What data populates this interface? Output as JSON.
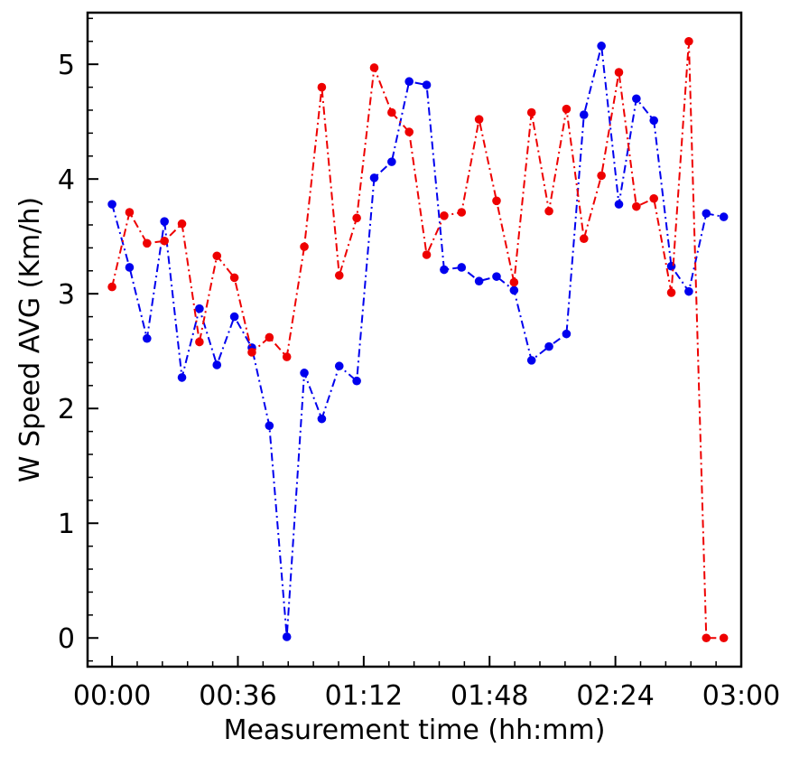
{
  "chart_data": {
    "type": "line",
    "title": "",
    "xlabel": "Measurement time (hh:mm)",
    "ylabel": "W Speed AVG (Km/h)",
    "x_unit": "hh:mm",
    "xlim": [
      "-00:07",
      "03:00"
    ],
    "ylim": [
      -0.25,
      5.45
    ],
    "x_ticks": [
      "00:00",
      "00:36",
      "01:12",
      "01:48",
      "02:24",
      "03:00"
    ],
    "y_ticks": [
      "0",
      "1",
      "2",
      "3",
      "4",
      "5"
    ],
    "grid": false,
    "legend": "none",
    "x": [
      "00:00",
      "00:05",
      "00:10",
      "00:15",
      "00:20",
      "00:25",
      "00:30",
      "00:35",
      "00:40",
      "00:45",
      "00:50",
      "00:55",
      "01:00",
      "01:05",
      "01:10",
      "01:15",
      "01:20",
      "01:25",
      "01:30",
      "01:35",
      "01:40",
      "01:45",
      "01:50",
      "01:55",
      "02:00",
      "02:05",
      "02:10",
      "02:15",
      "02:20",
      "02:25",
      "02:30",
      "02:35",
      "02:40",
      "02:45",
      "02:50",
      "02:55"
    ],
    "series": [
      {
        "color": "#0000ee",
        "line_style": "dash-dot",
        "marker": "circle",
        "values": [
          3.78,
          3.23,
          2.61,
          3.63,
          2.27,
          2.87,
          2.38,
          2.8,
          2.53,
          1.85,
          0.01,
          2.31,
          1.91,
          2.37,
          2.24,
          4.01,
          4.15,
          4.85,
          4.82,
          3.21,
          3.23,
          3.11,
          3.15,
          3.03,
          2.42,
          2.54,
          2.65,
          4.56,
          5.16,
          3.78,
          4.7,
          4.51,
          3.24,
          3.02,
          3.7,
          3.67
        ]
      },
      {
        "color": "#ee0000",
        "line_style": "dash-dot",
        "marker": "circle",
        "values": [
          3.06,
          3.71,
          3.44,
          3.46,
          3.61,
          2.58,
          3.33,
          3.14,
          2.49,
          2.62,
          2.45,
          3.41,
          4.8,
          3.16,
          3.66,
          4.97,
          4.58,
          4.41,
          3.34,
          3.68,
          3.71,
          4.52,
          3.81,
          3.1,
          4.58,
          3.72,
          4.61,
          3.48,
          4.03,
          4.93,
          3.76,
          3.83,
          3.01,
          5.2,
          0.0,
          0.0
        ]
      }
    ]
  }
}
